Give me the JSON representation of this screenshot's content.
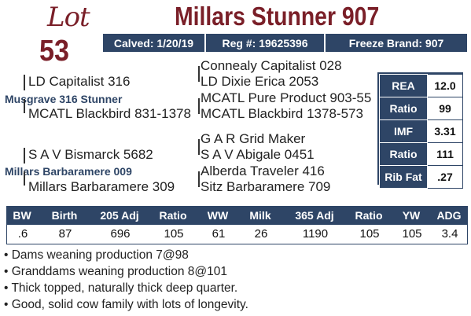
{
  "lot": {
    "label": "Lot",
    "number": "53"
  },
  "title": "Millars Stunner 907",
  "info": {
    "calved": "Calved: 1/20/19",
    "reg": "Reg #: 19625396",
    "freeze_brand": "Freeze Brand: 907"
  },
  "pedigree": {
    "sire": "Musgrave 316 Stunner",
    "sire_sire": "LD Capitalist 316",
    "sire_sire_sire": "Connealy Capitalist 028",
    "sire_sire_dam": "LD Dixie Erica 2053",
    "sire_dam": "MCATL Blackbird 831-1378",
    "sire_dam_sire": "MCATL Pure Product 903-55",
    "sire_dam_dam": "MCATL Blackbird 1378-573",
    "dam": "Millars Barbaramere 009",
    "dam_sire": "S A V Bismarck 5682",
    "dam_sire_sire": "G A R Grid Maker",
    "dam_sire_dam": "S A V Abigale 0451",
    "dam_dam": "Millars Barbaramere 309",
    "dam_dam_sire": "Alberda Traveler 416",
    "dam_dam_dam": "Sitz Barbaramere 709"
  },
  "carcass": [
    {
      "label": "REA",
      "value": "12.0"
    },
    {
      "label": "Ratio",
      "value": "99"
    },
    {
      "label": "IMF",
      "value": "3.31"
    },
    {
      "label": "Ratio",
      "value": "111"
    },
    {
      "label": "Rib Fat",
      "value": ".27"
    }
  ],
  "performance": {
    "headers": [
      "BW",
      "Birth",
      "205 Adj",
      "Ratio",
      "WW",
      "Milk",
      "365 Adj",
      "Ratio",
      "YW",
      "ADG"
    ],
    "values": [
      ".6",
      "87",
      "696",
      "105",
      "61",
      "26",
      "1190",
      "105",
      "105",
      "3.4"
    ]
  },
  "notes": [
    "• Dams weaning production 7@98",
    "• Granddams weaning production 8@101",
    "• Thick topped, naturally thick deep quarter.",
    "• Good, solid cow family with lots of longevity."
  ],
  "colors": {
    "maroon": "#7a1f28",
    "navy": "#2e4566"
  }
}
